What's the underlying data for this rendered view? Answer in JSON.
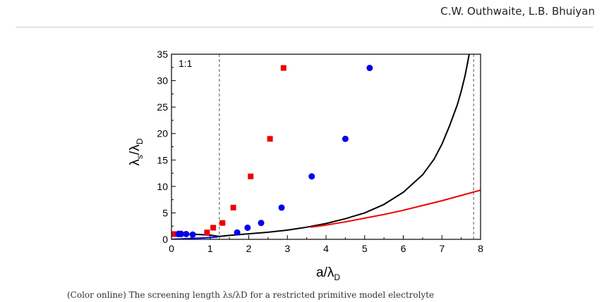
{
  "page_header": {
    "authors": "C.W. Outhwaite, L.B. Bhuiyan"
  },
  "caption_fragment": "(Color online) The screening length λs/λD for a restricted primitive model electrolyte",
  "chart_data": {
    "type": "scatter",
    "panel_label": "1:1",
    "xlabel": {
      "main": "a/λ",
      "sub": "D"
    },
    "ylabel": {
      "main": "λ",
      "sub1": "s",
      "mid": "/λ",
      "sub2": "D"
    },
    "xlim": [
      0,
      8
    ],
    "ylim": [
      0,
      35
    ],
    "x_ticks": [
      0,
      1,
      2,
      3,
      4,
      5,
      6,
      7,
      8
    ],
    "y_ticks": [
      0,
      5,
      10,
      15,
      20,
      25,
      30,
      35
    ],
    "grid": false,
    "vertical_dashed_lines": [
      1.24,
      7.82
    ],
    "series": [
      {
        "marker": "square",
        "color": "#ee0000",
        "x": [
          0.08,
          0.22,
          0.92,
          1.08,
          1.32,
          1.6,
          2.05,
          2.55,
          2.9
        ],
        "y": [
          1.0,
          1.1,
          1.3,
          2.2,
          3.1,
          6.0,
          11.9,
          19.0,
          32.4
        ]
      },
      {
        "marker": "circle",
        "color": "#0000ee",
        "x": [
          0.18,
          0.25,
          0.38,
          0.55,
          1.7,
          1.97,
          2.32,
          2.85,
          3.63,
          4.5,
          5.13
        ],
        "y": [
          1.0,
          1.0,
          1.0,
          0.9,
          1.3,
          2.2,
          3.1,
          6.0,
          11.9,
          19.0,
          32.4
        ]
      },
      {
        "type": "line",
        "color": "#000000",
        "x": [
          0,
          0.5,
          1,
          1.24,
          1.5,
          2,
          2.5,
          3,
          3.5,
          4,
          4.5,
          5,
          5.5,
          6,
          6.5,
          6.8,
          7,
          7.2,
          7.4,
          7.5,
          7.6,
          7.68,
          7.74,
          7.78
        ],
        "y": [
          1.0,
          1.0,
          0.8,
          0.55,
          0.75,
          1.05,
          1.35,
          1.75,
          2.3,
          3.0,
          3.9,
          5.0,
          6.6,
          8.9,
          12.2,
          15.2,
          18.0,
          21.5,
          25.5,
          28.0,
          31.0,
          34.0,
          36.5,
          38.5
        ]
      },
      {
        "type": "line",
        "color": "#ee0000",
        "x": [
          3.6,
          4,
          4.5,
          5,
          5.5,
          6,
          6.5,
          7,
          7.5,
          8
        ],
        "y": [
          2.3,
          2.7,
          3.3,
          4.0,
          4.7,
          5.5,
          6.4,
          7.3,
          8.3,
          9.3
        ]
      },
      {
        "type": "line",
        "color": "#0000ee",
        "x": [
          0,
          0.3,
          0.6,
          0.9,
          1.2
        ],
        "y": [
          0.0,
          0.1,
          0.2,
          0.3,
          0.45
        ]
      }
    ]
  }
}
